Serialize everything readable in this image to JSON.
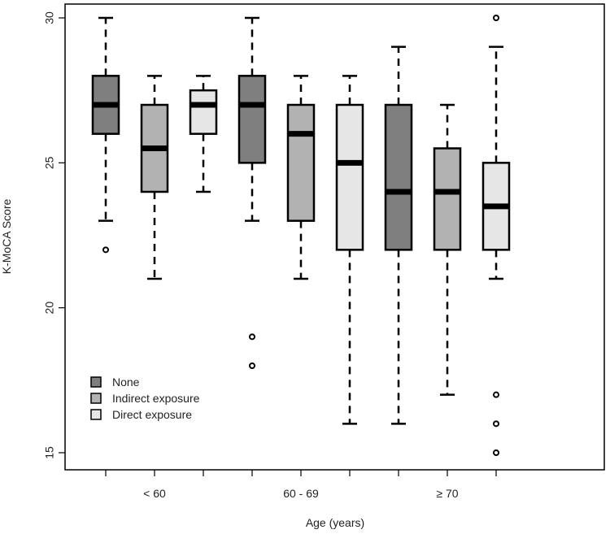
{
  "chart_data": {
    "type": "boxplot",
    "xlabel": "Age (years)",
    "ylabel": "K-MoCA Score",
    "ylim": [
      15,
      30
    ],
    "yticks": [
      15,
      20,
      25,
      30
    ],
    "categories": [
      "< 60",
      "60 - 69",
      "≥ 70"
    ],
    "legend_position": "bottom-left",
    "grid": false,
    "series": [
      {
        "name": "None",
        "color": "#7f7f7f",
        "boxes": [
          {
            "whisker_low": 23,
            "q1": 26,
            "median": 27,
            "q3": 28,
            "whisker_high": 30,
            "outliers": [
              22
            ]
          },
          {
            "whisker_low": 23,
            "q1": 25,
            "median": 27,
            "q3": 28,
            "whisker_high": 30,
            "outliers": [
              19,
              18
            ]
          },
          {
            "whisker_low": 16,
            "q1": 22,
            "median": 24,
            "q3": 27,
            "whisker_high": 29,
            "outliers": []
          }
        ]
      },
      {
        "name": "Indirect exposure",
        "color": "#b2b2b2",
        "boxes": [
          {
            "whisker_low": 21,
            "q1": 24,
            "median": 25.5,
            "q3": 27,
            "whisker_high": 28,
            "outliers": []
          },
          {
            "whisker_low": 21,
            "q1": 23,
            "median": 26,
            "q3": 27,
            "whisker_high": 28,
            "outliers": []
          },
          {
            "whisker_low": 17,
            "q1": 22,
            "median": 24,
            "q3": 25.5,
            "whisker_high": 27,
            "outliers": []
          }
        ]
      },
      {
        "name": "Direct exposure",
        "color": "#e6e6e6",
        "boxes": [
          {
            "whisker_low": 24,
            "q1": 26,
            "median": 27,
            "q3": 27.5,
            "whisker_high": 28,
            "outliers": []
          },
          {
            "whisker_low": 16,
            "q1": 22,
            "median": 25,
            "q3": 27,
            "whisker_high": 28,
            "outliers": []
          },
          {
            "whisker_low": 21,
            "q1": 22,
            "median": 23.5,
            "q3": 25,
            "whisker_high": 29,
            "outliers": [
              30,
              17,
              16,
              15
            ]
          }
        ]
      }
    ]
  }
}
